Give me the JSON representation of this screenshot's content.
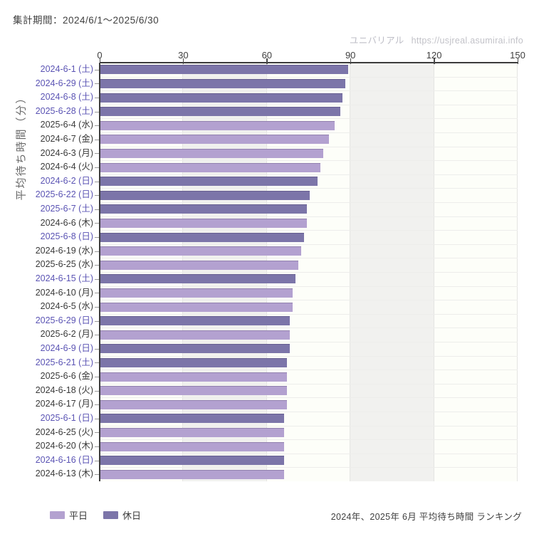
{
  "header": {
    "period_label": "集計期間：2024/6/1～2025/6/30",
    "watermark_brand": "ユニバリアル",
    "watermark_url": "https://usjreal.asumirai.info"
  },
  "legend": {
    "items": [
      {
        "label": "平日",
        "type": "weekday"
      },
      {
        "label": "休日",
        "type": "holiday"
      }
    ]
  },
  "footer": {
    "caption": "2024年、2025年 6月 平均待ち時間 ランキング"
  },
  "colors": {
    "weekday_bar": "#b3a1d0",
    "holiday_bar": "#7c75a9",
    "weekday_label": "#3a3a3a",
    "weekend_label": "#5b54b4",
    "band_gray": "#f1f1ef"
  },
  "chart_data": {
    "type": "bar",
    "orientation": "horizontal",
    "title": "2024年、2025年 6月 平均待ち時間 ランキング",
    "ylabel": "平均待ち時間（分）",
    "xlabel": "",
    "xlim": [
      0,
      150
    ],
    "x_ticks": [
      0,
      30,
      60,
      90,
      120,
      150
    ],
    "grid": true,
    "legend_position": "bottom",
    "categories": [
      "2024-6-1 (土)",
      "2024-6-29 (土)",
      "2024-6-8 (土)",
      "2025-6-28 (土)",
      "2025-6-4 (水)",
      "2024-6-7 (金)",
      "2024-6-3 (月)",
      "2024-6-4 (火)",
      "2024-6-2 (日)",
      "2025-6-22 (日)",
      "2025-6-7 (土)",
      "2024-6-6 (木)",
      "2025-6-8 (日)",
      "2024-6-19 (水)",
      "2025-6-25 (水)",
      "2024-6-15 (土)",
      "2024-6-10 (月)",
      "2024-6-5 (水)",
      "2025-6-29 (日)",
      "2025-6-2 (月)",
      "2024-6-9 (日)",
      "2025-6-21 (土)",
      "2025-6-6 (金)",
      "2024-6-18 (火)",
      "2024-6-17 (月)",
      "2025-6-1 (日)",
      "2024-6-25 (火)",
      "2024-6-20 (木)",
      "2024-6-16 (日)",
      "2024-6-13 (木)"
    ],
    "values": [
      89,
      88,
      87,
      86,
      84,
      82,
      80,
      79,
      78,
      75,
      74,
      74,
      73,
      72,
      71,
      70,
      69,
      69,
      68,
      68,
      68,
      67,
      67,
      67,
      67,
      66,
      66,
      66,
      66,
      66
    ],
    "day_types": [
      "holiday",
      "holiday",
      "holiday",
      "holiday",
      "weekday",
      "weekday",
      "weekday",
      "weekday",
      "holiday",
      "holiday",
      "holiday",
      "weekday",
      "holiday",
      "weekday",
      "weekday",
      "holiday",
      "weekday",
      "weekday",
      "holiday",
      "weekday",
      "holiday",
      "holiday",
      "weekday",
      "weekday",
      "weekday",
      "holiday",
      "weekday",
      "weekday",
      "holiday",
      "weekday"
    ]
  }
}
